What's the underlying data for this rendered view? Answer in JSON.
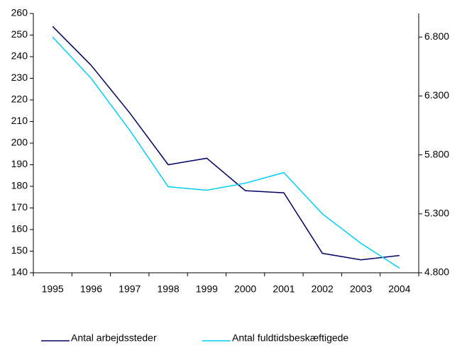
{
  "chart_data": {
    "type": "line",
    "categories": [
      "1995",
      "1996",
      "1997",
      "1998",
      "1999",
      "2000",
      "2001",
      "2002",
      "2003",
      "2004"
    ],
    "series": [
      {
        "name": "Antal arbejdssteder",
        "color": "#000066",
        "values": [
          254,
          236,
          214,
          190,
          193,
          178,
          177,
          149,
          146,
          148
        ]
      },
      {
        "name": "Antal fuldtidsbeskæftigede",
        "color": "#00ccff",
        "axis": "y2",
        "values": [
          6800,
          6450,
          6010,
          5530,
          5500,
          5560,
          5650,
          5300,
          5050,
          4840
        ]
      }
    ],
    "ylim": [
      140,
      260
    ],
    "yticks": [
      140,
      150,
      160,
      170,
      180,
      190,
      200,
      210,
      220,
      230,
      240,
      250,
      260
    ],
    "y2lim": [
      4800,
      7000
    ],
    "y2ticks": [
      {
        "value": 4800,
        "label": "4.800"
      },
      {
        "value": 5300,
        "label": "5.300"
      },
      {
        "value": 5800,
        "label": "5.800"
      },
      {
        "value": 6300,
        "label": "6.300"
      },
      {
        "value": 6800,
        "label": "6.800"
      }
    ],
    "legend": "bottom"
  }
}
